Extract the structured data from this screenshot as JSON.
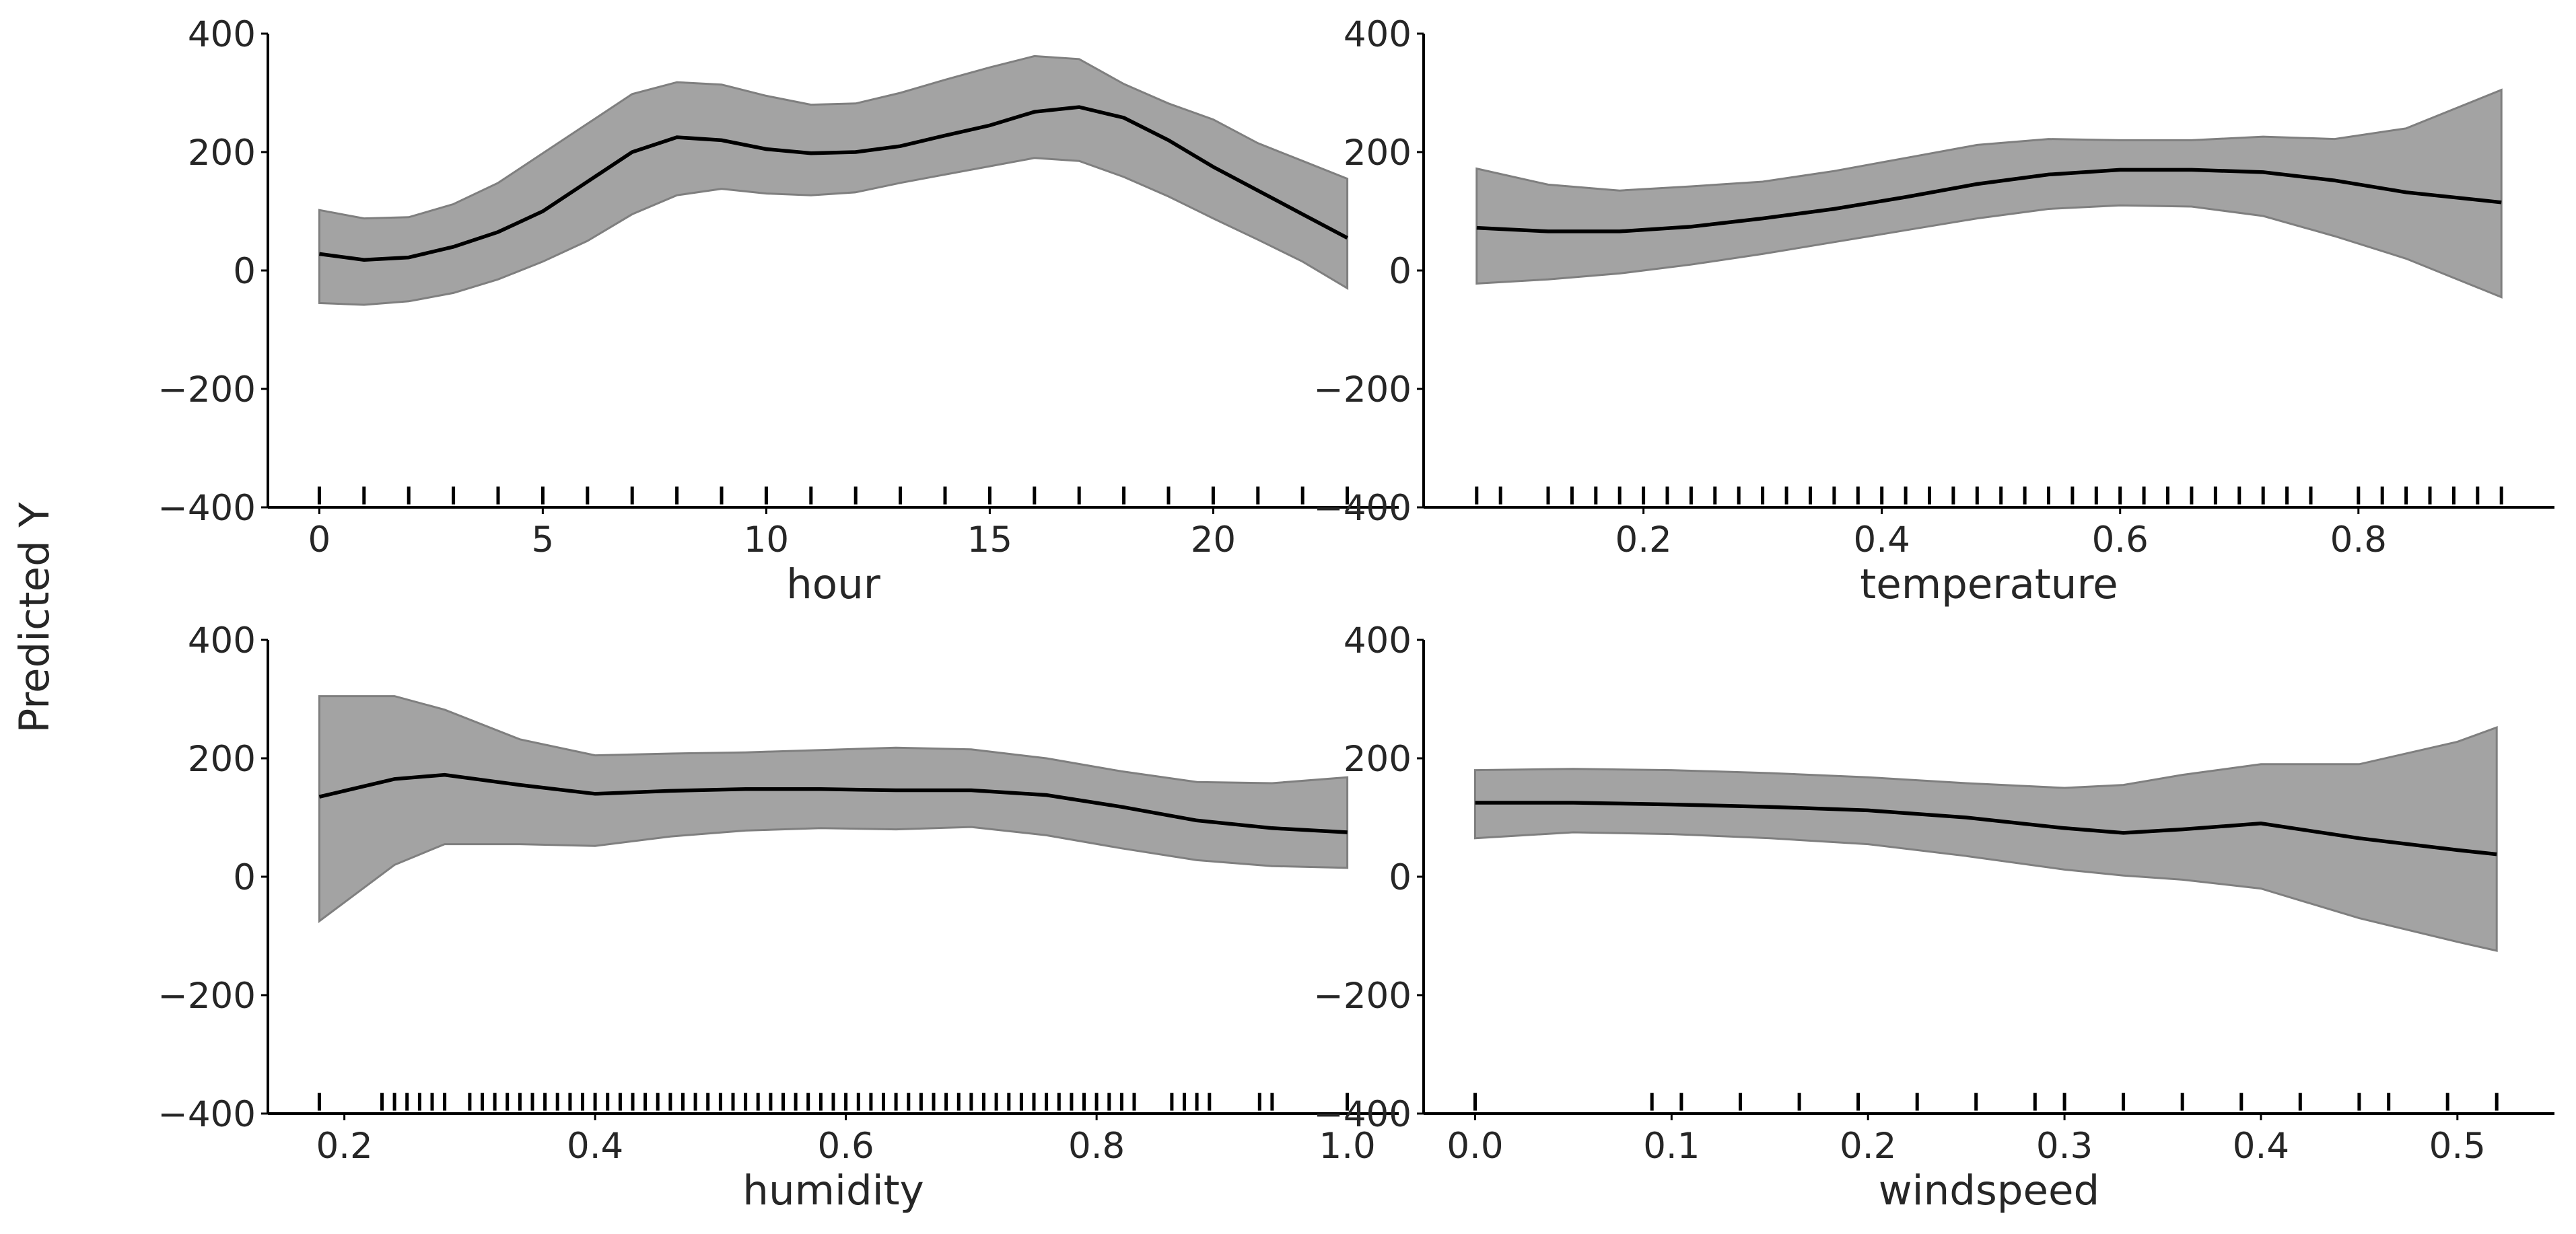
{
  "figure": {
    "ylabel": "Predicted Y"
  },
  "colors": {
    "band": "#a3a3a3",
    "band_edge": "#7f7f7f",
    "line": "#000000",
    "rug": "#000000"
  },
  "chart_data": [
    {
      "type": "area",
      "xlabel": "hour",
      "ylabel": "",
      "xlim": [
        -1.15,
        24.15
      ],
      "ylim": [
        -400,
        400
      ],
      "xticks": [
        0,
        5,
        10,
        15,
        20
      ],
      "xtick_labels": [
        "0",
        "5",
        "10",
        "15",
        "20"
      ],
      "yticks": [
        -400,
        -200,
        0,
        200,
        400
      ],
      "ytick_labels": [
        "−400",
        "−200",
        "0",
        "200",
        "400"
      ],
      "series": [
        {
          "x": [
            0,
            1,
            2,
            3,
            4,
            5,
            6,
            7,
            8,
            9,
            10,
            11,
            12,
            13,
            14,
            15,
            16,
            17,
            18,
            19,
            20,
            21,
            22,
            23
          ],
          "mean": [
            28,
            18,
            22,
            40,
            65,
            100,
            150,
            200,
            225,
            220,
            205,
            198,
            200,
            210,
            228,
            245,
            268,
            276,
            258,
            220,
            175,
            135,
            95,
            55
          ],
          "lower": [
            -55,
            -58,
            -52,
            -38,
            -15,
            15,
            50,
            95,
            127,
            138,
            130,
            127,
            132,
            148,
            162,
            176,
            190,
            185,
            158,
            125,
            88,
            52,
            15,
            -30
          ],
          "upper": [
            102,
            88,
            90,
            112,
            148,
            198,
            248,
            298,
            318,
            314,
            295,
            280,
            282,
            300,
            322,
            343,
            362,
            357,
            315,
            282,
            255,
            215,
            185,
            155
          ]
        }
      ],
      "rug": [
        0,
        1,
        2,
        3,
        4,
        5,
        6,
        7,
        8,
        9,
        10,
        11,
        12,
        13,
        14,
        15,
        16,
        17,
        18,
        19,
        20,
        21,
        22,
        23
      ]
    },
    {
      "type": "area",
      "xlabel": "temperature",
      "ylabel": "",
      "xlim": [
        0.0155,
        0.9645
      ],
      "ylim": [
        -400,
        400
      ],
      "xticks": [
        0.2,
        0.4,
        0.6,
        0.8
      ],
      "xtick_labels": [
        "0.2",
        "0.4",
        "0.6",
        "0.8"
      ],
      "yticks": [
        -400,
        -200,
        0,
        200,
        400
      ],
      "ytick_labels": [
        "−400",
        "−200",
        "0",
        "200",
        "400"
      ],
      "series": [
        {
          "x": [
            0.06,
            0.12,
            0.18,
            0.24,
            0.3,
            0.36,
            0.42,
            0.48,
            0.54,
            0.6,
            0.66,
            0.72,
            0.78,
            0.84,
            0.92
          ],
          "mean": [
            72,
            66,
            66,
            74,
            88,
            104,
            124,
            146,
            162,
            170,
            170,
            166,
            152,
            132,
            115
          ],
          "lower": [
            -22,
            -15,
            -5,
            10,
            28,
            48,
            68,
            88,
            104,
            110,
            108,
            92,
            58,
            20,
            -45
          ],
          "upper": [
            172,
            145,
            135,
            142,
            150,
            168,
            190,
            212,
            222,
            220,
            220,
            226,
            222,
            240,
            305
          ]
        }
      ],
      "rug": [
        0.06,
        0.08,
        0.12,
        0.14,
        0.16,
        0.18,
        0.2,
        0.22,
        0.24,
        0.26,
        0.28,
        0.3,
        0.32,
        0.34,
        0.36,
        0.38,
        0.4,
        0.42,
        0.44,
        0.46,
        0.48,
        0.5,
        0.52,
        0.54,
        0.56,
        0.58,
        0.6,
        0.62,
        0.64,
        0.66,
        0.68,
        0.7,
        0.72,
        0.74,
        0.76,
        0.8,
        0.82,
        0.84,
        0.86,
        0.88,
        0.9,
        0.92
      ]
    },
    {
      "type": "area",
      "xlabel": "humidity",
      "ylabel": "",
      "xlim": [
        0.139,
        1.041
      ],
      "ylim": [
        -400,
        400
      ],
      "xticks": [
        0.2,
        0.4,
        0.6,
        0.8,
        1.0
      ],
      "xtick_labels": [
        "0.2",
        "0.4",
        "0.6",
        "0.8",
        "1.0"
      ],
      "yticks": [
        -400,
        -200,
        0,
        200,
        400
      ],
      "ytick_labels": [
        "−400",
        "−200",
        "0",
        "200",
        "400"
      ],
      "series": [
        {
          "x": [
            0.18,
            0.24,
            0.28,
            0.34,
            0.4,
            0.46,
            0.52,
            0.58,
            0.64,
            0.7,
            0.76,
            0.82,
            0.88,
            0.94,
            1.0
          ],
          "mean": [
            135,
            165,
            172,
            155,
            140,
            145,
            148,
            148,
            146,
            146,
            138,
            118,
            95,
            82,
            75
          ],
          "lower": [
            -75,
            20,
            55,
            55,
            52,
            68,
            78,
            82,
            80,
            84,
            70,
            48,
            28,
            18,
            15
          ],
          "upper": [
            305,
            305,
            282,
            232,
            205,
            208,
            210,
            214,
            218,
            215,
            200,
            178,
            160,
            158,
            168
          ]
        }
      ],
      "rug": [
        0.18,
        0.23,
        0.24,
        0.25,
        0.26,
        0.27,
        0.28,
        0.3,
        0.31,
        0.32,
        0.33,
        0.34,
        0.35,
        0.36,
        0.37,
        0.38,
        0.39,
        0.4,
        0.41,
        0.42,
        0.43,
        0.44,
        0.45,
        0.46,
        0.47,
        0.48,
        0.49,
        0.5,
        0.51,
        0.52,
        0.53,
        0.54,
        0.55,
        0.56,
        0.57,
        0.58,
        0.59,
        0.6,
        0.61,
        0.62,
        0.63,
        0.64,
        0.65,
        0.66,
        0.67,
        0.68,
        0.69,
        0.7,
        0.71,
        0.72,
        0.73,
        0.74,
        0.75,
        0.76,
        0.77,
        0.78,
        0.79,
        0.8,
        0.81,
        0.82,
        0.83,
        0.86,
        0.87,
        0.88,
        0.89,
        0.93,
        0.94,
        1.0
      ]
    },
    {
      "type": "area",
      "xlabel": "windspeed",
      "ylabel": "",
      "xlim": [
        -0.0262,
        0.5494
      ],
      "ylim": [
        -400,
        400
      ],
      "xticks": [
        0.0,
        0.1,
        0.2,
        0.3,
        0.4,
        0.5
      ],
      "xtick_labels": [
        "0.0",
        "0.1",
        "0.2",
        "0.3",
        "0.4",
        "0.5"
      ],
      "yticks": [
        -400,
        -200,
        0,
        200,
        400
      ],
      "ytick_labels": [
        "−400",
        "−200",
        "0",
        "200",
        "400"
      ],
      "series": [
        {
          "x": [
            0.0,
            0.05,
            0.1,
            0.15,
            0.2,
            0.25,
            0.3,
            0.33,
            0.36,
            0.4,
            0.45,
            0.5,
            0.52
          ],
          "mean": [
            125,
            125,
            122,
            118,
            112,
            100,
            82,
            74,
            80,
            90,
            65,
            45,
            38
          ],
          "lower": [
            65,
            75,
            72,
            65,
            55,
            35,
            12,
            2,
            -5,
            -20,
            -70,
            -110,
            -125
          ],
          "upper": [
            180,
            182,
            180,
            175,
            168,
            158,
            150,
            155,
            172,
            190,
            190,
            228,
            252
          ]
        }
      ],
      "rug": [
        0.0,
        0.09,
        0.105,
        0.135,
        0.165,
        0.195,
        0.225,
        0.255,
        0.285,
        0.3,
        0.33,
        0.36,
        0.39,
        0.42,
        0.45,
        0.465,
        0.495,
        0.52
      ]
    }
  ]
}
